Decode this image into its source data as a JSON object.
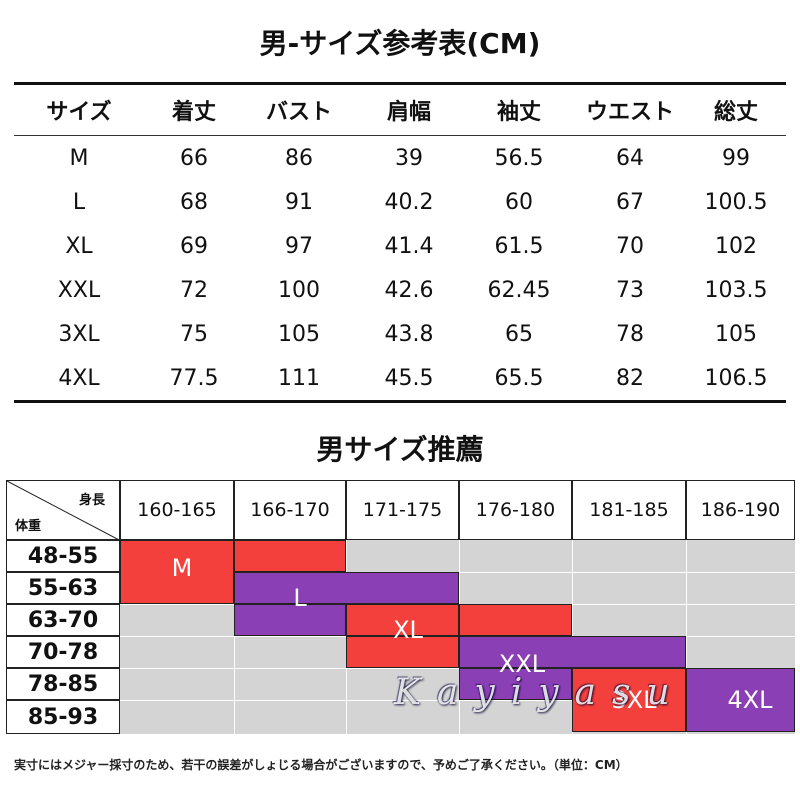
{
  "title_size_table": "男-サイズ参考表(CM)",
  "size_table": {
    "headers": [
      "サイズ",
      "着丈",
      "バスト",
      "肩幅",
      "袖丈",
      "ウエスト",
      "総丈"
    ],
    "rows": [
      [
        "M",
        "66",
        "86",
        "39",
        "56.5",
        "64",
        "99"
      ],
      [
        "L",
        "68",
        "91",
        "40.2",
        "60",
        "67",
        "100.5"
      ],
      [
        "XL",
        "69",
        "97",
        "41.4",
        "61.5",
        "70",
        "102"
      ],
      [
        "XXL",
        "72",
        "100",
        "42.6",
        "62.45",
        "73",
        "103.5"
      ],
      [
        "3XL",
        "75",
        "105",
        "43.8",
        "65",
        "78",
        "105"
      ],
      [
        "4XL",
        "77.5",
        "111",
        "45.5",
        "65.5",
        "82",
        "106.5"
      ]
    ]
  },
  "title_recommend": "男サイズ推薦",
  "recommend": {
    "corner_top": "身長",
    "corner_bottom": "体重",
    "heights": [
      "160-165",
      "166-170",
      "171-175",
      "176-180",
      "181-185",
      "186-190"
    ],
    "weights": [
      "48-55",
      "55-63",
      "63-70",
      "70-78",
      "78-85",
      "85-93"
    ],
    "blocks": [
      {
        "label": "M",
        "color": "#f4403c"
      },
      {
        "label": "L",
        "color": "#8a3fb5"
      },
      {
        "label": "XL",
        "color": "#f4403c"
      },
      {
        "label": "XXL",
        "color": "#8a3fb5"
      },
      {
        "label": "3XL",
        "color": "#f4403c"
      },
      {
        "label": "4XL",
        "color": "#8a3fb5"
      }
    ]
  },
  "watermark": "Kayiyasu",
  "note": "実寸にはメジャー採寸のため、若干の誤差がしょじる場合がございますので、予めご了承ください。（単位：CM）"
}
